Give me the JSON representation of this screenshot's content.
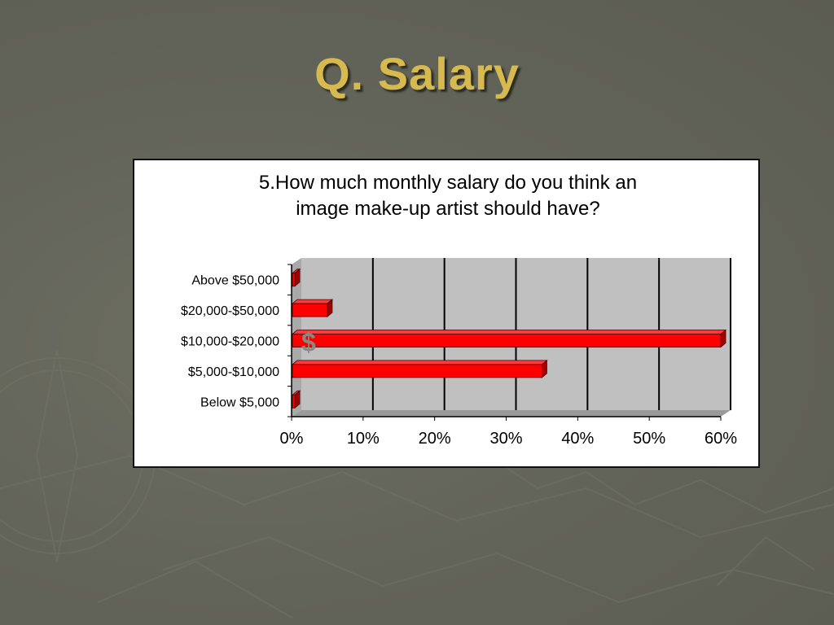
{
  "slide": {
    "title": "Q. Salary"
  },
  "colors": {
    "background": "#63645a",
    "title": "#d6b94f",
    "bar_front": "#ff0000",
    "bar_top": "#ff3a3a",
    "bar_side": "#a00000",
    "plot_area": "#c0c0c0"
  },
  "chart_data": {
    "type": "bar",
    "orientation": "horizontal",
    "title": "5.How much monthly salary do you think an image make-up artist should have?",
    "title_lines": [
      "5.How much monthly salary do you think an",
      "image make-up artist should have?"
    ],
    "categories": [
      "Above $50,000",
      "$20,000-$50,000",
      "$10,000-$20,000",
      "$5,000-$10,000",
      "Below  $5,000"
    ],
    "values": [
      0,
      5,
      60,
      35,
      0
    ],
    "unit": "%",
    "xlim": [
      0,
      60
    ],
    "x_ticks": [
      0,
      10,
      20,
      30,
      40,
      50,
      60
    ],
    "x_tick_labels": [
      "0%",
      "10%",
      "20%",
      "30%",
      "40%",
      "50%",
      "60%"
    ],
    "grid": true,
    "legend": "none",
    "annotation": "$"
  }
}
